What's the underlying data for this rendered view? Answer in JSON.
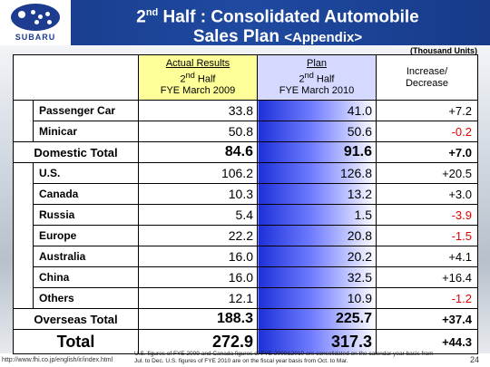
{
  "logo": {
    "word": "SUBARU"
  },
  "title": {
    "pre": "2",
    "sup": "nd",
    "line1": " Half : Consolidated Automobile",
    "line2": "Sales Plan ",
    "appendix": "<Appendix>"
  },
  "units": "(Thousand Units)",
  "header": {
    "actual": {
      "line1": "Actual Results",
      "line2a": "2",
      "line2sup": "nd",
      "line2b": " Half",
      "line3": "FYE March 2009"
    },
    "plan": {
      "line1": "Plan",
      "line2a": "2",
      "line2sup": "nd",
      "line2b": " Half",
      "line3": "FYE March 2010"
    },
    "change": {
      "line1": "Increase/",
      "line2": "Decrease"
    }
  },
  "rows": {
    "passenger": {
      "name": "Passenger Car",
      "actual": "33.8",
      "plan": "41.0",
      "change": "+7.2"
    },
    "minicar": {
      "name": "Minicar",
      "actual": "50.8",
      "plan": "50.6",
      "change": "-0.2"
    },
    "domestic": {
      "name": "Domestic Total",
      "actual": "84.6",
      "plan": "91.6",
      "change": "+7.0"
    },
    "us": {
      "name": "U.S.",
      "actual": "106.2",
      "plan": "126.8",
      "change": "+20.5"
    },
    "canada": {
      "name": "Canada",
      "actual": "10.3",
      "plan": "13.2",
      "change": "+3.0"
    },
    "russia": {
      "name": "Russia",
      "actual": "5.4",
      "plan": "1.5",
      "change": "-3.9"
    },
    "europe": {
      "name": "Europe",
      "actual": "22.2",
      "plan": "20.8",
      "change": "-1.5"
    },
    "australia": {
      "name": "Australia",
      "actual": "16.0",
      "plan": "20.2",
      "change": "+4.1"
    },
    "china": {
      "name": "China",
      "actual": "16.0",
      "plan": "32.5",
      "change": "+16.4"
    },
    "others": {
      "name": "Others",
      "actual": "12.1",
      "plan": "10.9",
      "change": "-1.2"
    },
    "overseas": {
      "name": "Overseas Total",
      "actual": "188.3",
      "plan": "225.7",
      "change": "+37.4"
    },
    "total": {
      "name": "Total",
      "actual": "272.9",
      "plan": "317.3",
      "change": "+44.3"
    }
  },
  "footer": {
    "url": "http://www.fhi.co.jp/english/ir/index.html",
    "note": "U.S. figures of FYE 2009 and Canada figures of FYE 2009&2010 are consolidated on the calendar year basis from Jul. to Dec. U.S. figures of FYE 2010 are on the fiscal year basis from Oct. to Mar.",
    "page": "24"
  },
  "colors": {
    "header_blue": "#1f4aa0",
    "actual_header": "#ffff99",
    "plan_gradient": "#1c30d8",
    "negative": "#e00000"
  }
}
